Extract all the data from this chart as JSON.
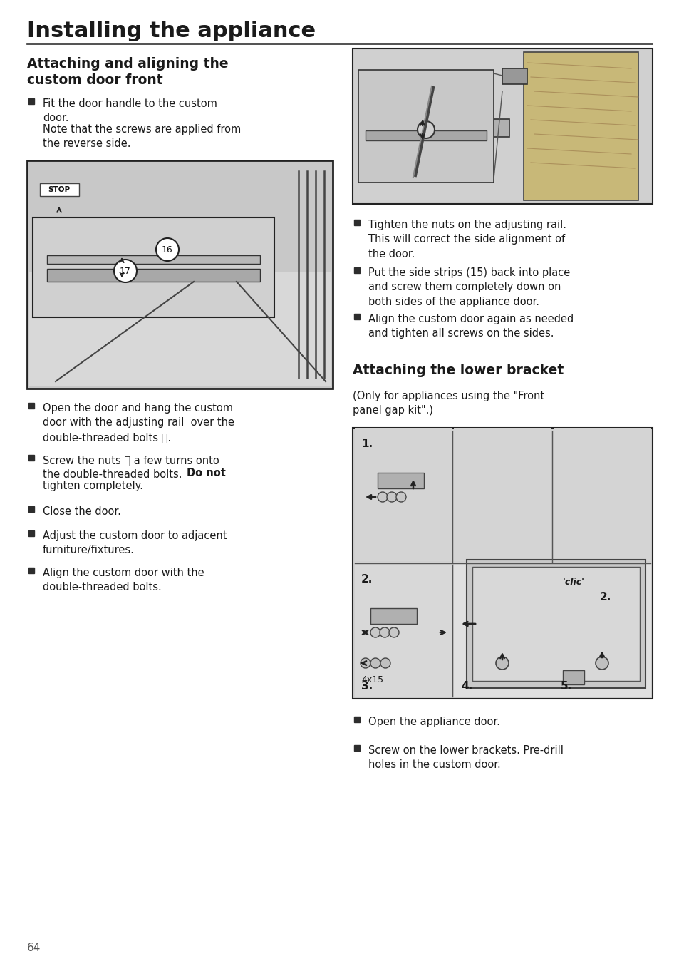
{
  "bg_color": "#ffffff",
  "text_color": "#1a1a1a",
  "page_number": "64",
  "main_title": "Installing the appliance",
  "section1_title": "Attaching and aligning the\ncustom door front",
  "section2_title": "Attaching the lower bracket",
  "bullet_color": "#2d2d2d",
  "line_color": "#1a1a1a",
  "left_bullets": [
    [
      "Fit the door handle to the custom\ndoor.\nNote that the screws are applied from\nthe reverse side.",
      false
    ],
    [
      "Open the door and hang the custom\ndoor with the adjusting rail  over the\ndouble-threaded bolts ⓱.",
      false
    ],
    [
      "Screw the nuts ⓲ a few turns onto\nthe double-threaded bolts. ",
      "Do not",
      "\ntighten completely.",
      false
    ],
    [
      "Close the door.",
      false
    ],
    [
      "Adjust the custom door to adjacent\nfurniture/fixtures.",
      false
    ],
    [
      "Align the custom door with the\ndouble-threaded bolts.",
      false
    ]
  ],
  "right_bullets_top": [
    "Tighten the nuts on the adjusting rail.\nThis will correct the side alignment of\nthe door.",
    "Put the side strips (15) back into place\nand screw them completely down on\nboth sides of the appliance door.",
    "Align the custom door again as needed\nand tighten all screws on the sides."
  ],
  "right_bullets_bottom": [
    "Open the appliance door.",
    "Screw on the lower brackets. Pre-drill\nholes in the custom door."
  ],
  "bracket_note": "(Only for appliances using the \"Front\npanel gap kit\".)",
  "img1_color": "#d8d8d8",
  "img2_color": "#e0e0e0",
  "img3_color": "#d8d8d8",
  "img4_color": "#d8d8d8"
}
